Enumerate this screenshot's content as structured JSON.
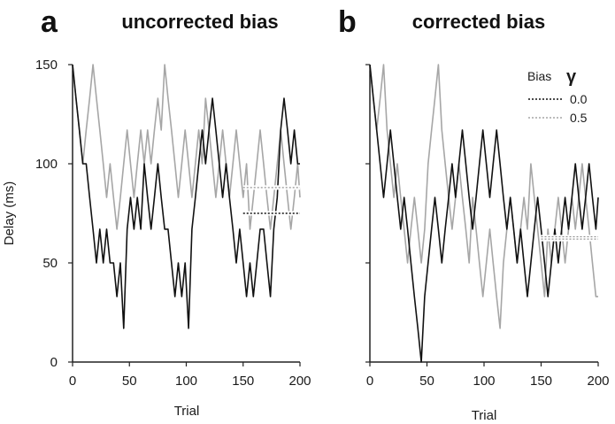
{
  "chart_data": [
    {
      "type": "line",
      "letter": "a",
      "title": "uncorrected bias",
      "xlabel": "Trial",
      "ylabel": "Delay (ms)",
      "xlim": [
        0,
        200
      ],
      "ylim": [
        0,
        150
      ],
      "xticks": [
        "0",
        "50",
        "100",
        "150",
        "200"
      ],
      "yticks": [
        "0",
        "50",
        "100",
        "150"
      ],
      "series": [
        {
          "key": "gamma0",
          "color": "#111111",
          "x": [
            0,
            3,
            6,
            9,
            12,
            15,
            18,
            21,
            24,
            27,
            30,
            33,
            36,
            39,
            42,
            45,
            48,
            51,
            54,
            57,
            60,
            63,
            66,
            69,
            72,
            75,
            78,
            81,
            84,
            87,
            90,
            93,
            96,
            99,
            102,
            105,
            108,
            111,
            114,
            117,
            120,
            123,
            126,
            129,
            132,
            135,
            138,
            141,
            144,
            147,
            150,
            153,
            156,
            159,
            162,
            165,
            168,
            171,
            174,
            177,
            180,
            183,
            186,
            189,
            192,
            195,
            198,
            200
          ],
          "y": [
            150,
            133,
            117,
            100,
            100,
            83,
            67,
            50,
            67,
            50,
            67,
            50,
            50,
            33,
            50,
            17,
            67,
            83,
            67,
            83,
            67,
            100,
            83,
            67,
            83,
            100,
            83,
            67,
            67,
            50,
            33,
            50,
            33,
            50,
            17,
            67,
            83,
            100,
            117,
            100,
            117,
            133,
            117,
            100,
            83,
            100,
            83,
            67,
            50,
            67,
            50,
            33,
            50,
            33,
            50,
            67,
            67,
            50,
            33,
            67,
            83,
            117,
            133,
            117,
            100,
            117,
            100,
            100
          ]
        },
        {
          "key": "gamma05",
          "color": "#a6a6a6",
          "x": [
            0,
            3,
            6,
            9,
            12,
            15,
            18,
            21,
            24,
            27,
            30,
            33,
            36,
            39,
            42,
            45,
            48,
            51,
            54,
            57,
            60,
            63,
            66,
            69,
            72,
            75,
            78,
            81,
            84,
            87,
            90,
            93,
            96,
            99,
            102,
            105,
            108,
            111,
            114,
            117,
            120,
            123,
            126,
            129,
            132,
            135,
            138,
            141,
            144,
            147,
            150,
            153,
            156,
            159,
            162,
            165,
            168,
            171,
            174,
            177,
            180,
            183,
            186,
            189,
            192,
            195,
            198,
            200
          ],
          "y": [
            150,
            133,
            117,
            100,
            117,
            133,
            150,
            133,
            117,
            100,
            83,
            100,
            83,
            67,
            83,
            100,
            117,
            100,
            83,
            100,
            117,
            100,
            117,
            100,
            117,
            133,
            117,
            150,
            133,
            117,
            100,
            83,
            100,
            117,
            100,
            83,
            100,
            117,
            100,
            133,
            117,
            100,
            83,
            100,
            117,
            100,
            83,
            100,
            117,
            100,
            83,
            100,
            67,
            83,
            100,
            117,
            100,
            83,
            67,
            83,
            100,
            117,
            100,
            83,
            67,
            83,
            100,
            83
          ]
        }
      ],
      "means": [
        {
          "key": "gamma0",
          "value": 75,
          "x_start": 150,
          "x_end": 200,
          "color": "#111111"
        },
        {
          "key": "gamma05",
          "value": 88,
          "x_start": 150,
          "x_end": 200,
          "color": "#a6a6a6"
        }
      ]
    },
    {
      "type": "line",
      "letter": "b",
      "title": "corrected bias",
      "xlabel": "Trial",
      "ylabel": "",
      "xlim": [
        0,
        200
      ],
      "ylim": [
        0,
        150
      ],
      "xticks": [
        "0",
        "50",
        "100",
        "150",
        "200"
      ],
      "yticks": [],
      "series": [
        {
          "key": "gamma0",
          "color": "#111111",
          "x": [
            0,
            3,
            6,
            9,
            12,
            15,
            18,
            21,
            24,
            27,
            30,
            33,
            36,
            39,
            42,
            45,
            48,
            51,
            54,
            57,
            60,
            63,
            66,
            69,
            72,
            75,
            78,
            81,
            84,
            87,
            90,
            93,
            96,
            99,
            102,
            105,
            108,
            111,
            114,
            117,
            120,
            123,
            126,
            129,
            132,
            135,
            138,
            141,
            144,
            147,
            150,
            153,
            156,
            159,
            162,
            165,
            168,
            171,
            174,
            177,
            180,
            183,
            186,
            189,
            192,
            195,
            198,
            200
          ],
          "y": [
            150,
            133,
            117,
            100,
            83,
            100,
            117,
            100,
            83,
            67,
            83,
            67,
            50,
            33,
            17,
            0,
            33,
            50,
            67,
            83,
            67,
            50,
            67,
            83,
            100,
            83,
            100,
            117,
            100,
            83,
            67,
            83,
            100,
            117,
            100,
            83,
            100,
            117,
            100,
            83,
            67,
            83,
            67,
            50,
            67,
            50,
            33,
            50,
            67,
            83,
            67,
            50,
            33,
            50,
            67,
            50,
            67,
            83,
            67,
            83,
            100,
            83,
            67,
            83,
            100,
            83,
            67,
            83
          ]
        },
        {
          "key": "gamma05",
          "color": "#a6a6a6",
          "x": [
            0,
            3,
            6,
            9,
            12,
            15,
            18,
            21,
            24,
            27,
            30,
            33,
            36,
            39,
            42,
            45,
            48,
            51,
            54,
            57,
            60,
            63,
            66,
            69,
            72,
            75,
            78,
            81,
            84,
            87,
            90,
            93,
            96,
            99,
            102,
            105,
            108,
            111,
            114,
            117,
            120,
            123,
            126,
            129,
            132,
            135,
            138,
            141,
            144,
            147,
            150,
            153,
            156,
            159,
            162,
            165,
            168,
            171,
            174,
            177,
            180,
            183,
            186,
            189,
            192,
            195,
            198,
            200
          ],
          "y": [
            150,
            133,
            117,
            133,
            150,
            117,
            100,
            83,
            100,
            83,
            67,
            50,
            67,
            83,
            67,
            50,
            67,
            100,
            117,
            133,
            150,
            117,
            100,
            83,
            67,
            83,
            100,
            83,
            67,
            50,
            83,
            67,
            50,
            33,
            50,
            67,
            50,
            33,
            17,
            50,
            67,
            83,
            67,
            50,
            67,
            83,
            67,
            100,
            83,
            67,
            50,
            33,
            67,
            50,
            67,
            83,
            67,
            50,
            67,
            83,
            67,
            83,
            100,
            83,
            67,
            50,
            33,
            33
          ]
        }
      ],
      "means": [
        {
          "key": "gamma0",
          "value": 63,
          "x_start": 150,
          "x_end": 200,
          "color": "#111111"
        },
        {
          "key": "gamma05",
          "value": 62,
          "x_start": 150,
          "x_end": 200,
          "color": "#a6a6a6"
        }
      ]
    }
  ],
  "legend": {
    "title": "Bias",
    "symbol": "γ",
    "entries": [
      {
        "key": "gamma0",
        "label": "0.0",
        "color": "#111111"
      },
      {
        "key": "gamma05",
        "label": "0.5",
        "color": "#a6a6a6"
      }
    ]
  }
}
